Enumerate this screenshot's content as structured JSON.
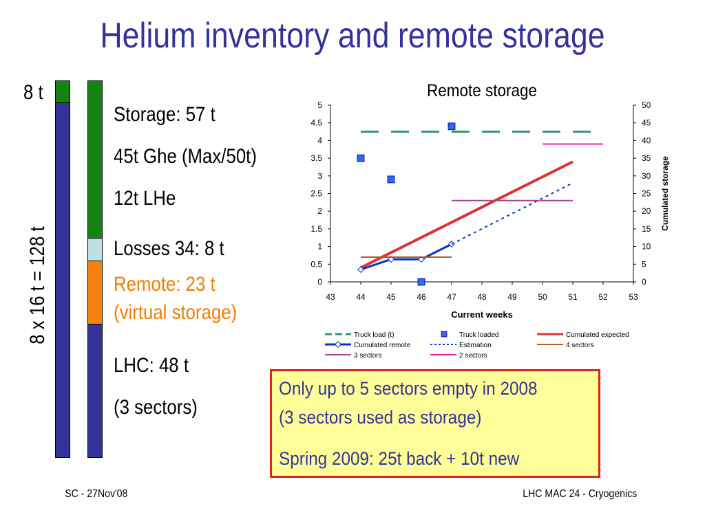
{
  "slide": {
    "title": "Helium inventory and remote storage",
    "label_top": "8 t",
    "label_vertical": "8 x 16 t = 128 t",
    "storage_lines": [
      "Storage: 57 t",
      "45t Ghe (Max/50t)",
      "12t LHe"
    ],
    "losses": "Losses 34: 8 t",
    "remote_lines": [
      "Remote: 23 t",
      "(virtual storage)"
    ],
    "lhc_lines": [
      "LHC: 48 t",
      "(3 sectors)"
    ],
    "note_lines": [
      "Only up to 5 sectors empty in 2008",
      "(3 sectors used as storage)",
      "Spring 2009: 25t back + 10t new"
    ],
    "footer_left": "SC - 27Nov'08",
    "footer_right": "LHC MAC 24 - Cryogenics"
  },
  "colors": {
    "title": "#333399",
    "green": "#158213",
    "blue": "#333399",
    "lightblue": "#bfe0e3",
    "orange": "#f7820b",
    "border_red": "#e32119"
  },
  "chart_data": {
    "type": "line",
    "title": "Remote storage",
    "xlabel": "Current weeks",
    "ylabel_right": "Cumulated storage",
    "xlim": [
      43,
      53
    ],
    "x_ticks": [
      43,
      44,
      45,
      46,
      47,
      48,
      49,
      50,
      51,
      52,
      53
    ],
    "ylim_left": [
      0,
      5
    ],
    "y_ticks_left": [
      "0",
      "0.5",
      "1",
      "1.5",
      "2",
      "2.5",
      "3",
      "3.5",
      "4",
      "4.5",
      "5"
    ],
    "ylim_right": [
      0,
      50
    ],
    "y_ticks_right": [
      "0",
      "5",
      "10",
      "15",
      "20",
      "25",
      "30",
      "35",
      "40",
      "45",
      "50"
    ],
    "series": [
      {
        "name": "Truck load (t)",
        "axis": "left",
        "style": "dash",
        "color": "#339966",
        "x": [
          44,
          52
        ],
        "y": [
          4.25,
          4.25
        ]
      },
      {
        "name": "Truck loaded",
        "axis": "left",
        "style": "marker",
        "color": "#3366ff",
        "x": [
          44,
          45,
          46,
          47
        ],
        "y": [
          3.5,
          2.9,
          0,
          4.4
        ]
      },
      {
        "name": "Cumulated expected",
        "axis": "right",
        "style": "solid-thick",
        "color": "#dd3333",
        "x": [
          44,
          51
        ],
        "y": [
          4,
          34
        ]
      },
      {
        "name": "Cumulated remote",
        "axis": "right",
        "style": "solid-marker",
        "color": "#0033cc",
        "x": [
          44,
          45,
          46,
          47
        ],
        "y": [
          3.5,
          6.4,
          6.4,
          10.7
        ]
      },
      {
        "name": "Estimation",
        "axis": "right",
        "style": "dot",
        "color": "#0033cc",
        "x": [
          47,
          51
        ],
        "y": [
          10.7,
          28
        ]
      },
      {
        "name": "4 sectors",
        "axis": "right",
        "style": "solid",
        "color": "#b25a1f",
        "x": [
          44,
          47
        ],
        "y": [
          7,
          7
        ]
      },
      {
        "name": "3 sectors",
        "axis": "right",
        "style": "solid",
        "color": "#aa4488",
        "x": [
          47,
          51
        ],
        "y": [
          23,
          23
        ]
      },
      {
        "name": "2 sectors",
        "axis": "right",
        "style": "solid",
        "color": "#ee22aa",
        "x": [
          50,
          52
        ],
        "y": [
          39,
          39
        ]
      }
    ]
  }
}
